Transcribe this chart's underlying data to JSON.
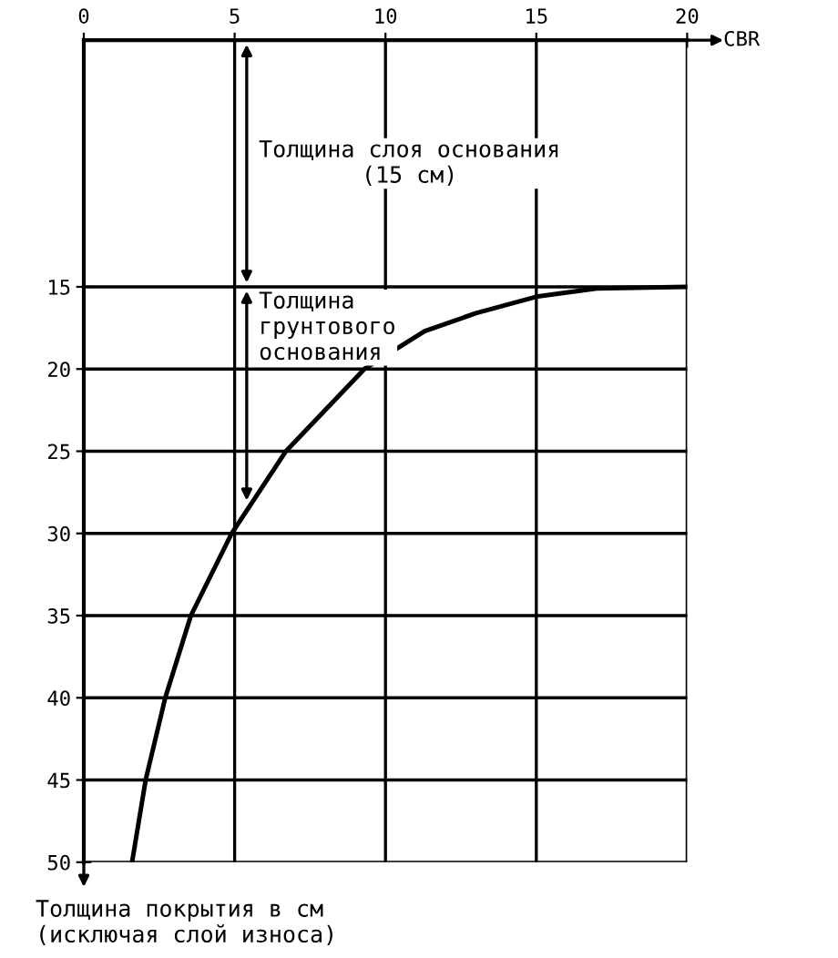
{
  "chart_data": {
    "type": "line",
    "x": [
      1.6,
      2.05,
      2.7,
      3.55,
      4.9,
      6.7,
      9.3,
      11.3,
      13,
      15,
      17,
      20
    ],
    "values": [
      50,
      45,
      40,
      35,
      30,
      25,
      20,
      17.7,
      16.6,
      15.6,
      15.1,
      15
    ],
    "color": "#000000",
    "xlabel": "CBR",
    "xlim": [
      0,
      20
    ],
    "xticks": [
      0,
      5,
      10,
      15,
      20
    ],
    "ylim": [
      50,
      0
    ],
    "yticks": [
      15,
      20,
      25,
      30,
      35,
      40,
      45,
      50
    ],
    "grid": true,
    "annotations": [
      "Толщина слоя основания\n(15 см)",
      {
        "text": "Толщина\nгрунтового\nоснования",
        "x": 5.4,
        "y": 28
      },
      "Толщина покрытия в см\n(исключая слой износа)"
    ]
  }
}
